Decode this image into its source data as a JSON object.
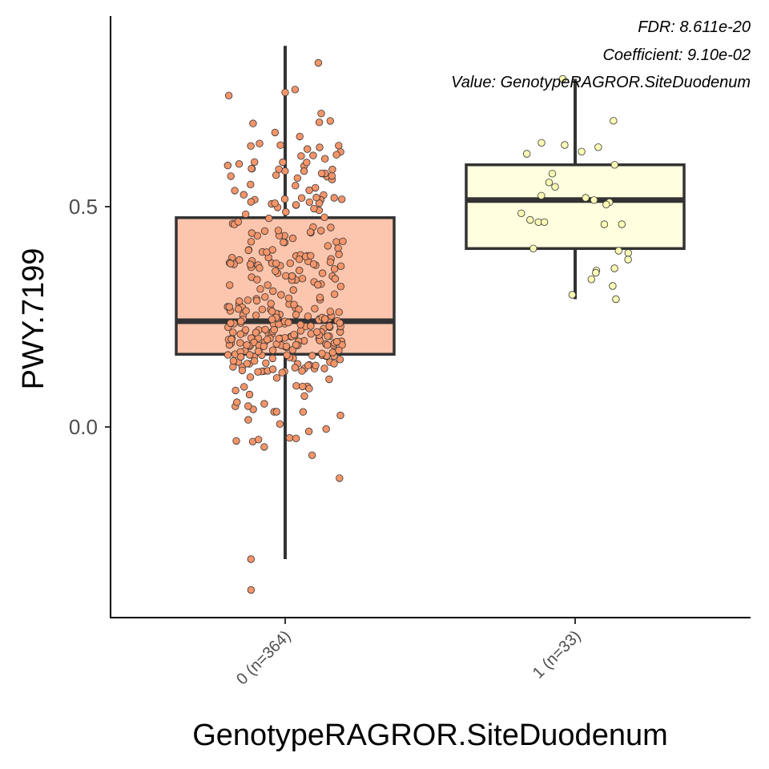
{
  "chart_data": {
    "type": "boxplot",
    "xlabel": "GenotypeRAGROR.SiteDuodenum",
    "ylabel": "PWY.7199",
    "categories": [
      "0 (n=364)",
      "1 (n=33)"
    ],
    "yticks": [
      0.0,
      0.5
    ],
    "ytick_labels": [
      "0.0",
      "0.5"
    ],
    "ylim": [
      -0.42,
      0.92
    ],
    "grid": false,
    "annotations": [
      "FDR: 8.611e-20",
      "Coefficient: 9.10e-02",
      "Value: GenotypeRAGROR.SiteDuodenum"
    ],
    "series": [
      {
        "category": "0 (n=364)",
        "n": 364,
        "fill": "#fcc5ad",
        "point_color": "#f4956a",
        "whisker_low": -0.3,
        "q1": 0.165,
        "median": 0.24,
        "q3": 0.475,
        "whisker_high": 0.865,
        "outliers": [
          -0.3,
          -0.37
        ]
      },
      {
        "category": "1 (n=33)",
        "n": 33,
        "fill": "#ffffe0",
        "point_color": "#fafab4",
        "whisker_low": 0.29,
        "q1": 0.405,
        "median": 0.515,
        "q3": 0.595,
        "whisker_high": 0.79,
        "points": [
          0.79,
          0.695,
          0.645,
          0.64,
          0.635,
          0.625,
          0.62,
          0.595,
          0.575,
          0.555,
          0.545,
          0.525,
          0.52,
          0.515,
          0.51,
          0.505,
          0.485,
          0.47,
          0.465,
          0.465,
          0.46,
          0.46,
          0.405,
          0.4,
          0.395,
          0.38,
          0.36,
          0.355,
          0.35,
          0.335,
          0.32,
          0.3,
          0.29
        ]
      }
    ]
  }
}
